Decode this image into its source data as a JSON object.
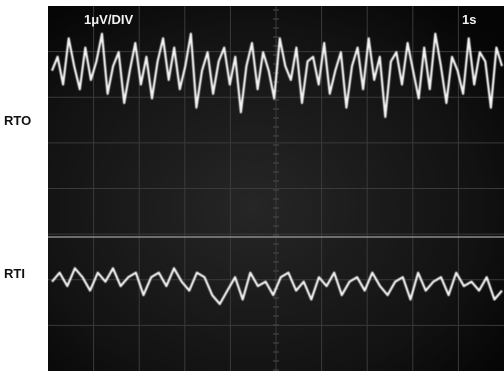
{
  "chart_data": [
    {
      "type": "line",
      "series": [
        {
          "name": "RTO",
          "values": [
            0.1,
            0.4,
            -0.2,
            0.8,
            0.2,
            -0.3,
            0.6,
            -0.1,
            0.3,
            0.9,
            -0.4,
            0.2,
            0.5,
            -0.6,
            0.1,
            0.7,
            -0.2,
            0.4,
            -0.5,
            0.3,
            0.8,
            -0.1,
            0.6,
            -0.3,
            0.2,
            0.9,
            -0.7,
            0.1,
            0.5,
            -0.4,
            0.3,
            0.6,
            -0.2,
            0.4,
            -0.8,
            0.2,
            0.7,
            -0.3,
            0.5,
            0.1,
            -0.5,
            0.8,
            0.2,
            -0.1,
            0.6,
            -0.6,
            0.3,
            0.4,
            -0.2,
            0.7,
            -0.4,
            0.1,
            0.5,
            -0.7,
            0.2,
            0.6,
            -0.3,
            0.8,
            -0.1,
            0.4,
            -0.9,
            0.3,
            0.5,
            -0.2,
            0.7,
            0.1,
            -0.5,
            0.6,
            -0.3,
            0.9,
            0.2,
            -0.6,
            0.4,
            0.1,
            -0.4,
            0.8,
            -0.2,
            0.5,
            0.3,
            -0.7,
            0.6,
            0.2
          ]
        }
      ],
      "ylim": [
        -3.5,
        1.5
      ]
    },
    {
      "type": "line",
      "series": [
        {
          "name": "RTI",
          "values": [
            0.0,
            0.2,
            -0.1,
            0.3,
            0.1,
            -0.2,
            0.2,
            0.0,
            0.3,
            -0.1,
            0.1,
            0.2,
            -0.3,
            0.1,
            0.2,
            -0.1,
            0.3,
            0.0,
            -0.2,
            0.2,
            0.1,
            -0.3,
            -0.5,
            -0.2,
            0.1,
            -0.4,
            0.2,
            -0.1,
            0.0,
            -0.3,
            0.1,
            0.2,
            -0.2,
            0.0,
            -0.4,
            0.1,
            -0.1,
            0.2,
            -0.3,
            0.0,
            0.1,
            -0.2,
            0.2,
            -0.1,
            -0.3,
            0.0,
            0.1,
            -0.4,
            0.2,
            -0.2,
            0.0,
            0.1,
            -0.3,
            0.2,
            -0.1,
            0.0,
            -0.2,
            0.1,
            -0.4,
            -0.2
          ]
        }
      ],
      "ylim": [
        -2,
        1
      ]
    }
  ],
  "scope": {
    "scale_label": "1μV/DIV",
    "time_label": "1s"
  },
  "labels": {
    "rto": "RTO",
    "rti": "RTI"
  }
}
